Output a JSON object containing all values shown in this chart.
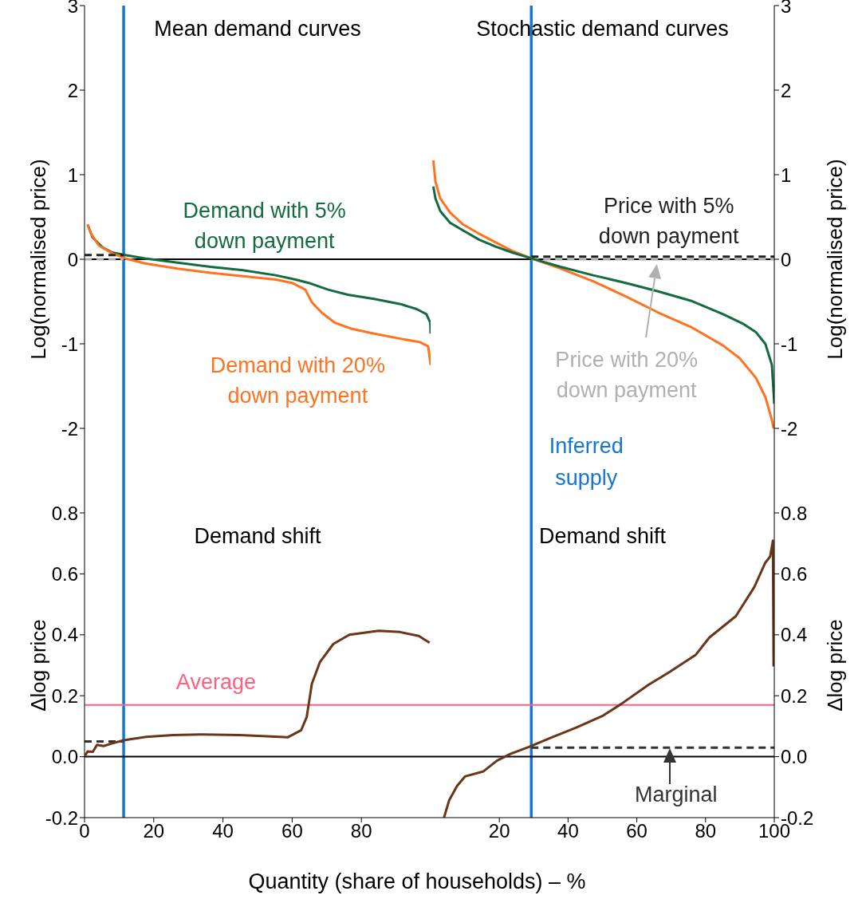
{
  "chart_data": [
    {
      "type": "line",
      "title": "Mean demand curves",
      "ylabel": "Log(normalised price)",
      "xlim": [
        0,
        100
      ],
      "ylim": [
        -3,
        3
      ],
      "yticks": [
        -2,
        -1,
        0,
        1,
        2,
        3
      ],
      "tick_labels": "y",
      "annotations": [
        "Demand with 5%\ndown payment",
        "Demand with 20%\ndown payment"
      ],
      "ref_lines": [
        {
          "axis": "x",
          "value": 11.3,
          "color": "#1676d2"
        },
        {
          "axis": "y",
          "value": 0,
          "color": "#000000"
        }
      ],
      "series": [
        {
          "color": "#136b3f",
          "x": [
            0.9,
            2.3,
            5.2,
            8,
            11.8,
            17.5,
            26.9,
            36.4,
            45.8,
            55.3,
            61,
            64.8,
            70.4,
            76.1,
            83.7,
            91.3,
            96,
            98.8,
            99.9,
            100
          ],
          "values": [
            0.41,
            0.26,
            0.14,
            0.08,
            0.05,
            0.01,
            -0.04,
            -0.09,
            -0.13,
            -0.19,
            -0.24,
            -0.28,
            -0.36,
            -0.42,
            -0.47,
            -0.53,
            -0.59,
            -0.65,
            -0.75,
            -0.88
          ]
        },
        {
          "color": "#ff7320",
          "x": [
            0.9,
            1.9,
            4.2,
            8,
            11.8,
            17.5,
            26.9,
            36.4,
            45.8,
            55.3,
            60,
            63.8,
            65.7,
            68.5,
            72.3,
            77,
            83.7,
            91.3,
            96.9,
            99.3,
            100
          ],
          "values": [
            0.41,
            0.3,
            0.16,
            0.07,
            0.01,
            -0.05,
            -0.11,
            -0.16,
            -0.2,
            -0.24,
            -0.28,
            -0.36,
            -0.51,
            -0.63,
            -0.75,
            -0.82,
            -0.88,
            -0.94,
            -0.98,
            -1.03,
            -1.25
          ]
        },
        {
          "color": "#222222",
          "line_style": "dashed",
          "x": [
            0,
            11.3
          ],
          "values": [
            0.05,
            0.05
          ]
        },
        {
          "color": "#b0b0b0",
          "line_style": "dashed",
          "x": [
            0,
            11.3
          ],
          "values": [
            0,
            0
          ]
        }
      ]
    },
    {
      "type": "line",
      "title": "Stochastic demand curves",
      "y2label": "Log(normalised price)",
      "xlim": [
        0,
        100
      ],
      "y2lim": [
        -3,
        3
      ],
      "y2ticks": [
        -2,
        -1,
        0,
        1,
        2,
        3
      ],
      "tick_labels": "y",
      "annotations": [
        "Price with 5%\ndown payment",
        "Price with 20%\ndown payment"
      ],
      "ref_lines": [
        {
          "axis": "x",
          "value": 29.3,
          "color": "#1676d2",
          "label": "Inferred\nsupply"
        },
        {
          "axis": "y2",
          "value": 0,
          "color": "#000000"
        }
      ],
      "series": [
        {
          "axis": "y2",
          "color": "#222222",
          "line_style": "dashed",
          "x": [
            29.3,
            100
          ],
          "values": [
            0.03,
            0.03
          ]
        },
        {
          "axis": "y2",
          "color": "#b0b0b0",
          "line_style": "dashed",
          "x": [
            29.3,
            100
          ],
          "values": [
            0,
            0
          ]
        },
        {
          "axis": "y2",
          "color": "#ff7320",
          "x": [
            0.8,
            1.4,
            2.8,
            5.7,
            9.5,
            14.2,
            18.9,
            23.7,
            29.3,
            37.8,
            47.3,
            56.8,
            66.2,
            75.7,
            85.1,
            89.9,
            94.6,
            97.4,
            99.3,
            99.8
          ],
          "values": [
            1.17,
            0.92,
            0.72,
            0.55,
            0.41,
            0.3,
            0.2,
            0.1,
            0.01,
            -0.11,
            -0.26,
            -0.44,
            -0.63,
            -0.8,
            -1.02,
            -1.17,
            -1.4,
            -1.63,
            -1.9,
            -2
          ]
        },
        {
          "axis": "y2",
          "color": "#136b3f",
          "x": [
            0.8,
            1.4,
            2.8,
            5.7,
            9.5,
            14.2,
            18.9,
            23.7,
            29.3,
            37.8,
            47.3,
            56.8,
            66.2,
            75.7,
            85.1,
            90.8,
            94.6,
            97.4,
            99.3,
            100
          ],
          "values": [
            0.86,
            0.72,
            0.57,
            0.43,
            0.34,
            0.23,
            0.15,
            0.08,
            0.01,
            -0.09,
            -0.19,
            -0.28,
            -0.38,
            -0.49,
            -0.65,
            -0.76,
            -0.86,
            -1,
            -1.25,
            -1.71
          ]
        }
      ]
    },
    {
      "type": "line",
      "title": "Demand shift",
      "ylabel": "Δlog price",
      "xlabel": "Quantity (share of households) – %",
      "xlim": [
        0,
        100
      ],
      "xticks": [
        0,
        20,
        40,
        60,
        80
      ],
      "ylim": [
        -0.2,
        0.8
      ],
      "yticks": [
        -0.2,
        {
          "value": 0,
          "label": "0.0"
        },
        0.2,
        0.4,
        0.6,
        0.8
      ],
      "ref_lines": [
        {
          "axis": "x",
          "value": 11.3,
          "color": "#1676d2"
        },
        {
          "axis": "y",
          "value": 0,
          "color": "#000000"
        },
        {
          "axis": "y",
          "value": 0.17,
          "color": "#ff5f80",
          "label": "Average"
        }
      ],
      "series": [
        {
          "color": "#333333",
          "line_style": "dashed",
          "x": [
            0,
            11.3
          ],
          "values": [
            0.05,
            0.05
          ]
        },
        {
          "color": "#6b3519",
          "x": [
            0.2,
            0.9,
            2.4,
            3.6,
            5.5,
            7.8,
            11.3,
            17.8,
            25.6,
            33.3,
            44.9,
            52.6,
            58.8,
            62.6,
            64.2,
            65.7,
            68,
            71.9,
            76.5,
            85,
            91.2,
            96.6,
            99.7
          ],
          "values": [
            0.004,
            0.017,
            0.016,
            0.039,
            0.035,
            0.043,
            0.054,
            0.065,
            0.071,
            0.073,
            0.071,
            0.067,
            0.064,
            0.087,
            0.13,
            0.24,
            0.31,
            0.37,
            0.4,
            0.413,
            0.409,
            0.396,
            0.374
          ]
        }
      ]
    },
    {
      "type": "line",
      "title": "Demand shift",
      "y2label": "Δlog price",
      "xlim": [
        0,
        100
      ],
      "xticks": [
        20,
        40,
        60,
        80,
        100
      ],
      "y2lim": [
        -0.2,
        0.8
      ],
      "y2ticks": [
        -0.2,
        {
          "value": 0,
          "label": "0.0"
        },
        0.2,
        0.4,
        0.6,
        0.8
      ],
      "annotations": [
        "Marginal"
      ],
      "ref_lines": [
        {
          "axis": "x",
          "value": 29.3,
          "color": "#1676d2"
        },
        {
          "axis": "y2",
          "value": 0,
          "color": "#000000"
        },
        {
          "axis": "y2",
          "value": 0.17,
          "color": "#ff5f80"
        }
      ],
      "series": [
        {
          "axis": "y2",
          "color": "#333333",
          "line_style": "dashed",
          "x": [
            29.3,
            100
          ],
          "values": [
            0.03,
            0.03
          ]
        },
        {
          "axis": "y2",
          "color": "#6b3519",
          "x": [
            3.9,
            5.4,
            7.7,
            10,
            15.4,
            19.3,
            23.2,
            28.6,
            34.7,
            42.5,
            50.2,
            55.6,
            63.3,
            69.5,
            77.2,
            81.1,
            88.8,
            94.2,
            97.3,
            98.8,
            99.6,
            99.8
          ],
          "values": [
            -0.2,
            -0.143,
            -0.096,
            -0.065,
            -0.048,
            -0.013,
            0.009,
            0.032,
            0.061,
            0.096,
            0.135,
            0.174,
            0.235,
            0.278,
            0.335,
            0.391,
            0.461,
            0.557,
            0.635,
            0.657,
            0.709,
            0.296
          ]
        }
      ]
    }
  ]
}
